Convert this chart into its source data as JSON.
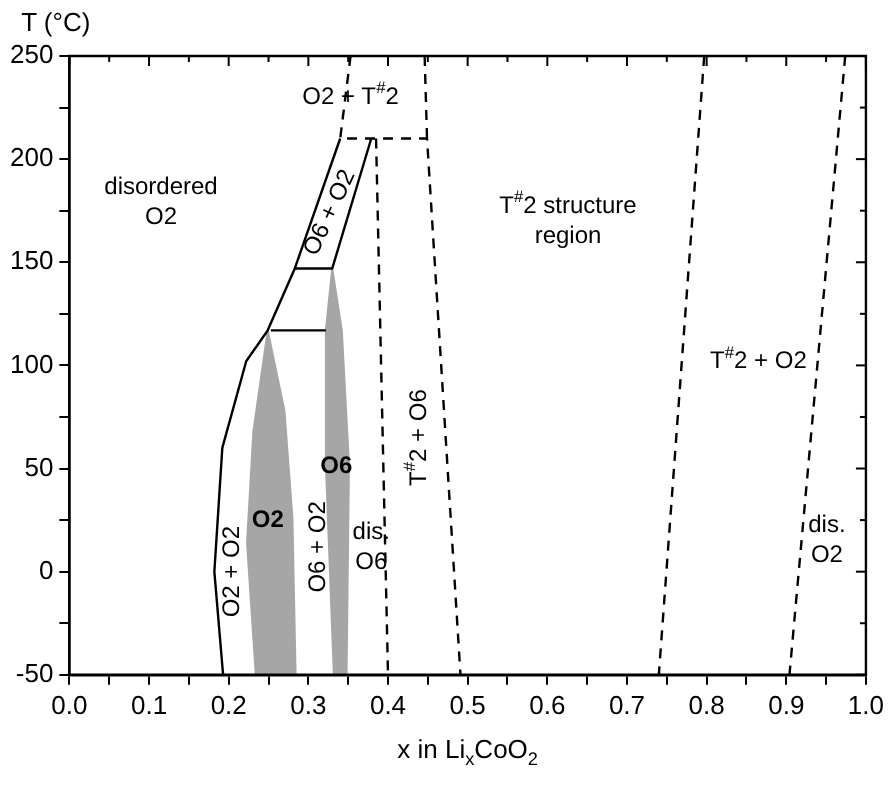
{
  "chart_data": {
    "type": "line",
    "xlabel": "x in Li$_{x}$CoO$_{2}$",
    "ylabel": "T (°C)",
    "xlim": [
      0,
      1
    ],
    "ylim": [
      -50,
      250
    ],
    "xticks": [
      {
        "value": 0,
        "label": "0.0"
      },
      {
        "value": 0.05,
        "label": null
      },
      {
        "value": 0.1,
        "label": "0.1"
      },
      {
        "value": 0.15,
        "label": null
      },
      {
        "value": 0.2,
        "label": "0.2"
      },
      {
        "value": 0.25,
        "label": null
      },
      {
        "value": 0.3,
        "label": "0.3"
      },
      {
        "value": 0.35,
        "label": null
      },
      {
        "value": 0.4,
        "label": "0.4"
      },
      {
        "value": 0.45,
        "label": null
      },
      {
        "value": 0.5,
        "label": "0.5"
      },
      {
        "value": 0.55,
        "label": null
      },
      {
        "value": 0.6,
        "label": "0.6"
      },
      {
        "value": 0.65,
        "label": null
      },
      {
        "value": 0.7,
        "label": "0.7"
      },
      {
        "value": 0.75,
        "label": null
      },
      {
        "value": 0.8,
        "label": "0.8"
      },
      {
        "value": 0.85,
        "label": null
      },
      {
        "value": 0.9,
        "label": "0.9"
      },
      {
        "value": 0.95,
        "label": null
      },
      {
        "value": 1,
        "label": "1.0"
      }
    ],
    "yticks": [
      -50,
      {
        "value": -25,
        "label": null
      },
      0,
      {
        "value": 25,
        "label": null
      },
      50,
      {
        "value": 75,
        "label": null
      },
      100,
      {
        "value": 125,
        "label": null
      },
      150,
      {
        "value": 175,
        "label": null
      },
      200,
      {
        "value": 225,
        "label": null
      },
      250
    ],
    "grid": false,
    "legend": false,
    "marker": "none",
    "series": [
      {
        "color": "#000000",
        "line_style": "solid",
        "x": [
          0.193,
          0.182,
          0.192,
          0.222,
          0.249,
          0.283,
          0.34
        ],
        "values": [
          -50,
          0,
          60,
          102,
          117,
          147,
          210
        ]
      },
      {
        "color": "#000000",
        "line_style": "solid",
        "x": [
          0.253,
          0.322
        ],
        "values": [
          117,
          117
        ]
      },
      {
        "color": "#000000",
        "line_style": "solid",
        "x": [
          0.283,
          0.33,
          0.379
        ],
        "values": [
          147,
          147,
          210
        ]
      },
      {
        "color": "#000000",
        "line_style": "dashed",
        "x": [
          0.353,
          0.34,
          0.449,
          0.491
        ],
        "values": [
          250,
          210,
          210,
          -50
        ]
      },
      {
        "color": "#000000",
        "line_style": "dashed",
        "x": [
          0.446,
          0.449
        ],
        "values": [
          250,
          210
        ]
      },
      {
        "color": "#000000",
        "line_style": "dashed",
        "x": [
          0.385,
          0.4
        ],
        "values": [
          210,
          -50
        ]
      },
      {
        "color": "#000000",
        "line_style": "dashed",
        "x": [
          0.797,
          0.74
        ],
        "values": [
          250,
          -50
        ]
      },
      {
        "color": "#000000",
        "line_style": "dashed",
        "x": [
          0.974,
          0.904
        ],
        "values": [
          250,
          -50
        ]
      },
      {
        "type": "area",
        "color": "#a6a6a6",
        "x": [
          0.234,
          0.223,
          0.231,
          0.249,
          0.27,
          0.28,
          0.284,
          0.234
        ],
        "values": [
          -50,
          14,
          68,
          117,
          78,
          26,
          -50,
          -50
        ]
      },
      {
        "type": "area",
        "color": "#a6a6a6",
        "x": [
          0.332,
          0.322,
          0.322,
          0.33,
          0.342,
          0.351,
          0.348,
          0.332
        ],
        "values": [
          -50,
          52,
          117,
          147,
          117,
          52,
          -50,
          -50
        ]
      }
    ],
    "annotations": [
      "disordered\nO2",
      "O2 + T$^{#}$2",
      "T$^{#}$2 structure\nregion",
      "T$^{#}$2 + O2",
      "dis.\nO2",
      "dis.\nO6",
      "O2",
      "O6",
      "O2 + O2",
      "O6 + O2",
      "T$^{#}$2 + O6",
      "O6 + O2"
    ]
  }
}
